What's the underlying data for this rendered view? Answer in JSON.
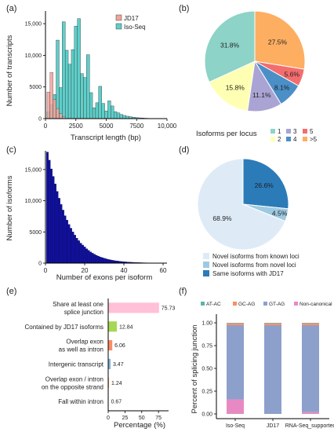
{
  "colors": {
    "jd17": "#f2a39a",
    "isoseq": "#5ecfca",
    "exons": "#1010a0",
    "pie_b": [
      "#fdae61",
      "#f46d6d",
      "#4b8fc7",
      "#aaa4d4",
      "#ffffb3",
      "#8dd3c7"
    ],
    "pie_d": [
      "#2b7bb9",
      "#9ecae1",
      "#deebf7"
    ],
    "e_bars": [
      "#ffc0d8",
      "#a6d854",
      "#fc8d62",
      "#80b1d3",
      "#fdb462",
      "#fccde5"
    ],
    "f_stack": [
      "#5ab4ac",
      "#fc8d62",
      "#8da0cb",
      "#e78ac3"
    ]
  },
  "chart_data": [
    {
      "id": "a",
      "panel_label": "(a)",
      "type": "bar",
      "xlabel": "Transcript length (bp)",
      "ylabel": "Number of transcripts",
      "xlim": [
        0,
        10000
      ],
      "ylim": [
        0,
        17000
      ],
      "xticks": [
        "0",
        "2500",
        "5000",
        "7500",
        "10,000"
      ],
      "yticks": [
        "0",
        "5000",
        "10,000",
        "15,000"
      ],
      "legend": [
        "JD17",
        "Iso-Seq"
      ],
      "legend_position": "top-right",
      "bin_width": 250,
      "series": [
        {
          "name": "JD17",
          "x": [
            250,
            500,
            750,
            1000,
            1250,
            1500
          ],
          "values": [
            4200,
            7300,
            3000,
            1600,
            800,
            300
          ]
        },
        {
          "name": "Iso-Seq",
          "x": [
            250,
            500,
            750,
            1000,
            1250,
            1500,
            1750,
            2000,
            2250,
            2500,
            2750,
            3000,
            3250,
            3500,
            3750,
            4000,
            4250,
            4500,
            4750,
            5000,
            5250,
            5500,
            5750,
            6000,
            6250,
            6500,
            6750,
            7000,
            7250,
            7500,
            7750,
            8000,
            8250,
            8500
          ],
          "values": [
            1100,
            2200,
            3800,
            12400,
            4900,
            15300,
            10800,
            8600,
            10900,
            14600,
            15800,
            7100,
            6500,
            10100,
            4100,
            1700,
            2500,
            5100,
            2400,
            1200,
            2800,
            2000,
            1100,
            900,
            650,
            500,
            380,
            300,
            220,
            160,
            120,
            90,
            60,
            40
          ]
        }
      ]
    },
    {
      "id": "b",
      "panel_label": "(b)",
      "type": "pie",
      "legend_title": "Isoforms per locus",
      "categories": [
        "1",
        "2",
        "3",
        "4",
        "5",
        ">5"
      ],
      "values": [
        31.8,
        15.8,
        11.1,
        8.1,
        5.6,
        27.5
      ],
      "labels": [
        "31.8%",
        "15.8%",
        "11.1%",
        "8.1%",
        "5.6%",
        "27.5%"
      ]
    },
    {
      "id": "c",
      "panel_label": "(c)",
      "type": "bar",
      "xlabel": "Number of exons per isoform",
      "ylabel": "Number of isoforms",
      "xlim": [
        0,
        62
      ],
      "ylim": [
        0,
        18000
      ],
      "xticks": [
        "0",
        "20",
        "40",
        "60"
      ],
      "yticks": [
        "0",
        "5000",
        "10,000",
        "15,000"
      ],
      "x": [
        1,
        2,
        3,
        4,
        5,
        6,
        7,
        8,
        9,
        10,
        11,
        12,
        13,
        14,
        15,
        16,
        17,
        18,
        19,
        20,
        21,
        22,
        23,
        24,
        25,
        26,
        27,
        28,
        29,
        30,
        31,
        32,
        33,
        34,
        35,
        36,
        37,
        38,
        39,
        40,
        41,
        42,
        43,
        44,
        45,
        46,
        47,
        48,
        49,
        50,
        51,
        52,
        53,
        54,
        55,
        56,
        57,
        58,
        59,
        60
      ],
      "values": [
        17800,
        16500,
        15100,
        13900,
        12700,
        11500,
        10400,
        9400,
        8500,
        7600,
        6900,
        6200,
        5600,
        5000,
        4500,
        4000,
        3600,
        3200,
        2900,
        2600,
        2300,
        2050,
        1800,
        1600,
        1420,
        1260,
        1120,
        990,
        880,
        780,
        690,
        610,
        540,
        480,
        420,
        370,
        330,
        290,
        255,
        225,
        200,
        175,
        155,
        135,
        120,
        105,
        92,
        80,
        70,
        61,
        53,
        46,
        40,
        35,
        30,
        26,
        22,
        19,
        16,
        13
      ]
    },
    {
      "id": "d",
      "panel_label": "(d)",
      "type": "pie",
      "categories": [
        "Same isoforms with JD17",
        "Novel isoforms from novel loci",
        "Novel isoforms from known loci"
      ],
      "values": [
        26.6,
        4.5,
        68.9
      ],
      "labels": [
        "26.6%",
        "4.5%",
        "68.9%"
      ],
      "legend_order": [
        "Novel isoforms from known loci",
        "Novel isoforms from novel loci",
        "Same isoforms with JD17"
      ]
    },
    {
      "id": "e",
      "panel_label": "(e)",
      "type": "bar",
      "orientation": "horizontal",
      "xlabel": "Percentage (%)",
      "xlim": [
        0,
        90
      ],
      "xticks": [
        "0",
        "25",
        "50",
        "75"
      ],
      "categories": [
        [
          "Share at least one",
          "splice junction"
        ],
        [
          "Contained by JD17 isoforms"
        ],
        [
          "Overlap exon",
          "as well as intron"
        ],
        [
          "Intergenic transcript"
        ],
        [
          "Overlap exon / intron",
          "on the opposite strand"
        ],
        [
          "Fall within intron"
        ]
      ],
      "values": [
        75.73,
        12.84,
        6.06,
        3.47,
        1.24,
        0.67
      ],
      "value_labels": [
        "75.73",
        "12.84",
        "6.06",
        "3.47",
        "1.24",
        "0.67"
      ]
    },
    {
      "id": "f",
      "panel_label": "(f)",
      "type": "bar",
      "stacked": true,
      "ylabel": "Percent of splicing junction",
      "ylim": [
        0,
        1.0
      ],
      "yticks": [
        "0.00",
        "0.25",
        "0.50",
        "0.75",
        "1.00"
      ],
      "categories": [
        "Iso-Seq",
        "JD17",
        "RNA-Seq_supported"
      ],
      "legend_position": "top",
      "series": [
        {
          "name": "Non-canonical",
          "values": [
            0.16,
            0.0,
            0.02
          ]
        },
        {
          "name": "GT-AG",
          "values": [
            0.815,
            0.975,
            0.955
          ]
        },
        {
          "name": "GC-AG",
          "values": [
            0.02,
            0.02,
            0.02
          ]
        },
        {
          "name": "AT-AC",
          "values": [
            0.005,
            0.005,
            0.005
          ]
        }
      ],
      "legend": [
        "AT-AC",
        "GC-AG",
        "GT-AG",
        "Non-canonical"
      ]
    }
  ]
}
